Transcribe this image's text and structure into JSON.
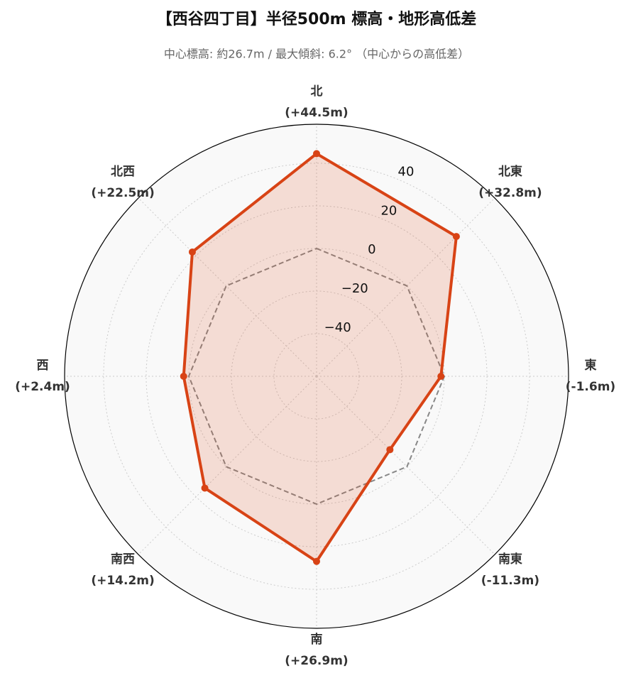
{
  "chart_data": {
    "type": "radar",
    "title": "【西谷四丁目】半径500m 標高・地形高低差",
    "subtitle": "中心標高: 約26.7m / 最大傾斜: 6.2° （中心からの高低差）",
    "categories": [
      "北",
      "北東",
      "東",
      "南東",
      "南",
      "南西",
      "西",
      "北西"
    ],
    "values": [
      44.5,
      32.8,
      -1.6,
      -11.3,
      26.9,
      14.2,
      2.4,
      22.5
    ],
    "value_labels": [
      "(+44.5m)",
      "(+32.8m)",
      "(-1.6m)",
      "(-11.3m)",
      "(+26.9m)",
      "(+14.2m)",
      "(+2.4m)",
      "(+22.5m)"
    ],
    "color": "#d84315",
    "ylim": [
      -60,
      58.3
    ],
    "yticks": [
      {
        "value": -40,
        "label": "−40"
      },
      {
        "value": -20,
        "label": "−20"
      },
      0,
      20,
      40
    ],
    "baseline": 0,
    "grid": true
  }
}
